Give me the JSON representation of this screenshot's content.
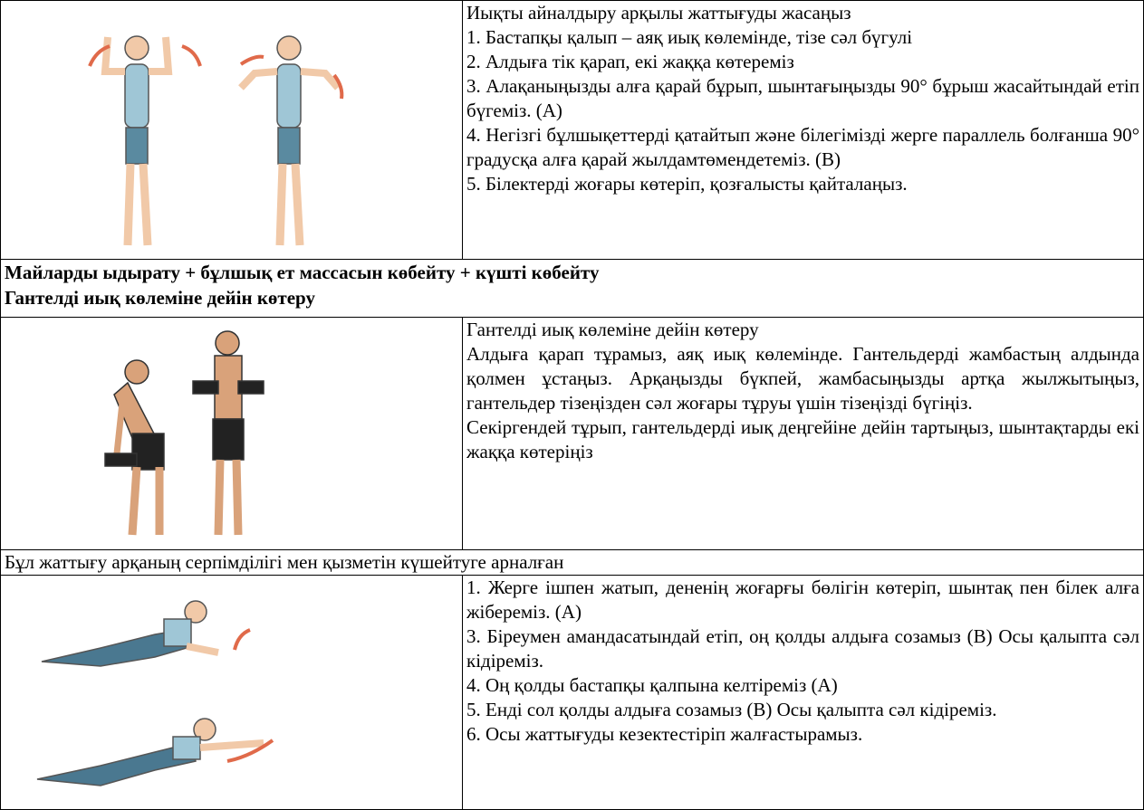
{
  "table": {
    "rows": [
      {
        "text": [
          "Иықты айналдыру арқылы жаттығуды жасаңыз",
          "1. Бастапқы қалып – аяқ иық көлемінде, тізе сәл бүгулі",
          "2. Алдыға тік қарап, екі жаққа көтереміз",
          "3. Алақаныңызды алға қарай бұрып, шынтағыңызды 90° бұрыш жасайтындай етіп бүгеміз. (А)",
          "4. Негізгі бұлшықеттерді қатайтып және білегімізді жерге параллель болғанша 90° градусқа алға қарай жылдамтөмендетеміз. (В)",
          "5. Білектерді жоғары көтеріп, қозғалысты қайталаңыз."
        ]
      },
      {
        "heading": [
          "Майларды ыдырату + бұлшық ет массасын көбейту + күшті көбейту",
          "Гантелді иық көлеміне дейін көтеру"
        ]
      },
      {
        "text": [
          "Гантелді иық көлеміне дейін көтеру",
          "Алдыға қарап тұрамыз, аяқ иық көлемінде. Гантельдерді жамбастың алдында қолмен ұстаңыз. Арқаңызды бүкпей, жамбасыңызды артқа жылжытыңыз, гантельдер тізеңізден сәл жоғары тұруы үшін тізеңізді бүгіңіз.",
          "Секіргендей тұрып, гантельдерді иық деңгейіне дейін тартыңыз, шынтақтарды екі жаққа көтеріңіз"
        ]
      },
      {
        "heading": [
          "Бұл жаттығу арқаның серпімділігі мен қызметін күшейтуге арналған"
        ]
      },
      {
        "text": [
          "1. Жерге ішпен жатып, дененің жоғарғы бөлігін көтеріп, шынтақ пен білек алға жібереміз. (А)",
          "3. Біреумен амандасатындай етіп, оң қолды алдыға созамыз (В) Осы қалыпта сәл кідіреміз.",
          "4. Оң қолды бастапқы қалпына келтіреміз (А)",
          "5. Енді сол қолды алдыға созамыз (В) Осы қалыпта сәл кідіреміз.",
          "6. Осы жаттығуды кезектестіріп жалғастырамыз."
        ]
      }
    ]
  }
}
